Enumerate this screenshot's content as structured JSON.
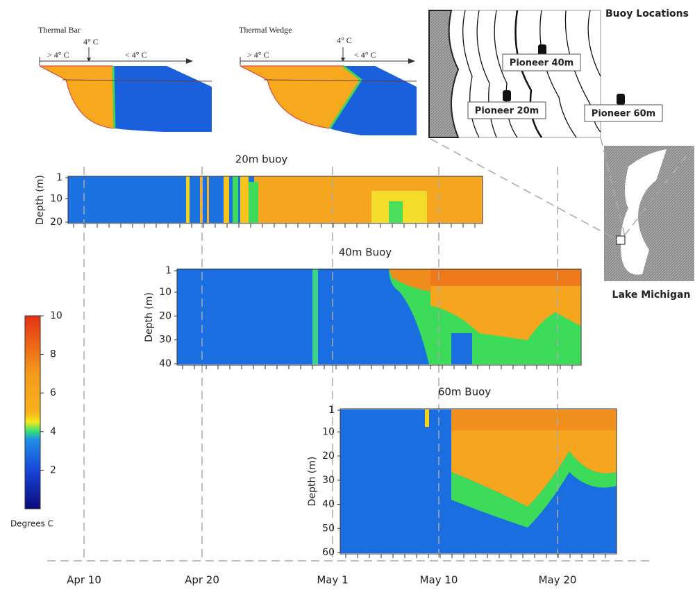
{
  "diagrams": [
    {
      "title": "Thermal Bar",
      "marker": "4° C",
      "left": "> 4° C",
      "right": "< 4° C"
    },
    {
      "title": "Thermal Wedge",
      "marker": "4° C",
      "left": "> 4° C",
      "right": "< 4° C"
    }
  ],
  "map": {
    "title": "Buoy Locations",
    "buoys": [
      "Pioneer 40m",
      "Pioneer 20m",
      "Pioneer 60m"
    ],
    "caption": "Lake Michigan"
  },
  "colorbar": {
    "label": "Degrees C",
    "lim": [
      0,
      10
    ],
    "ticks": [
      2,
      4,
      6,
      8,
      10
    ]
  },
  "panels": [
    {
      "title": "20m buoy",
      "ylabel": "Depth (m)",
      "ylim": [
        1,
        20
      ],
      "yticks": [
        1,
        10,
        20
      ]
    },
    {
      "title": "40m Buoy",
      "ylabel": "Depth (m)",
      "ylim": [
        1,
        40
      ],
      "yticks": [
        1,
        10,
        20,
        30,
        40
      ]
    },
    {
      "title": "60m Buoy",
      "ylabel": "Depth (m)",
      "ylim": [
        1,
        60
      ],
      "yticks": [
        1,
        10,
        20,
        30,
        40,
        50,
        60
      ]
    }
  ],
  "date_axis": {
    "ticks": [
      "Apr 10",
      "Apr 20",
      "May 1",
      "May 10",
      "May 20"
    ]
  }
}
